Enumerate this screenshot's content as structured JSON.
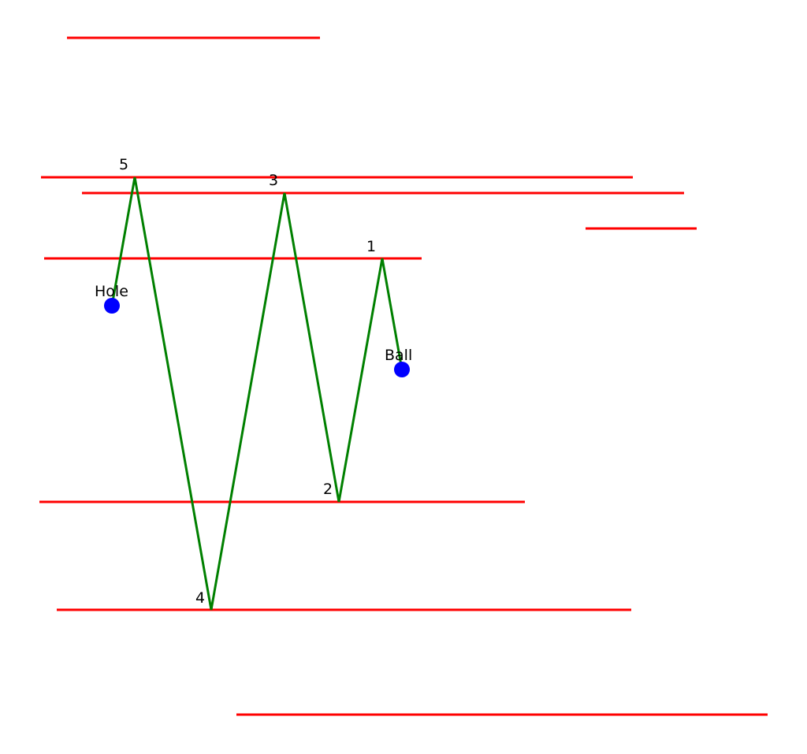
{
  "colors": {
    "background": "#ffffff",
    "wall": "#ff0000",
    "path": "#008000",
    "marker": "#0000ff",
    "text": "#000000"
  },
  "labels": {
    "ball": "Ball",
    "hole": "Hole",
    "bounces": [
      "1",
      "2",
      "3",
      "4",
      "5"
    ]
  }
}
